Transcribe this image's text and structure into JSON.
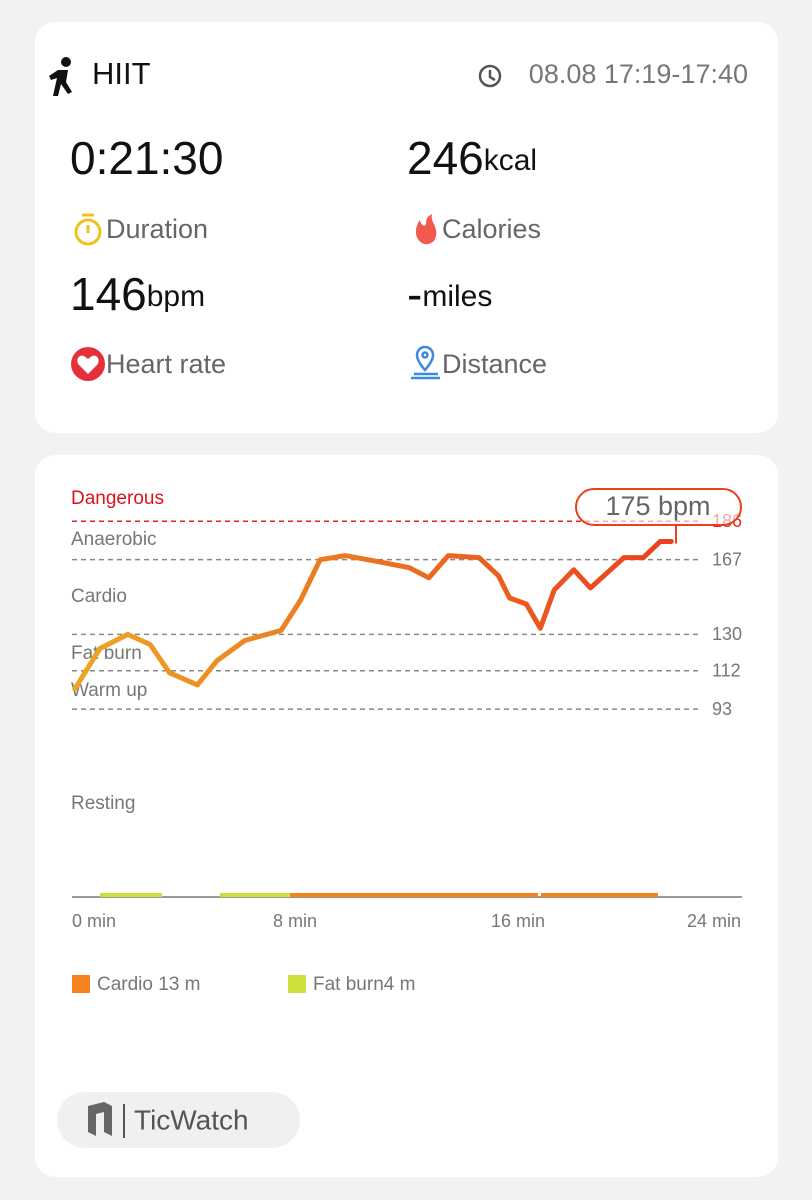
{
  "header": {
    "title": "HIIT",
    "time": "08.08 17:19-17:40"
  },
  "stats": [
    {
      "value": "0:21:30",
      "label": "Duration"
    },
    {
      "value": "246",
      "unit": "kcal",
      "label": "Calories"
    },
    {
      "value": "146",
      "unit": "bpm",
      "label": "Heart rate"
    },
    {
      "value": "-",
      "unit": "miles",
      "label": "Distance"
    }
  ],
  "chart_data": {
    "type": "line",
    "x": [
      0.1,
      1.0,
      2.0,
      2.8,
      3.5,
      4.5,
      5.2,
      6.2,
      7.5,
      8.2,
      8.9,
      9.8,
      11.0,
      12.1,
      12.8,
      13.5,
      14.6,
      15.3,
      15.7,
      16.3,
      16.8,
      17.3,
      18.0,
      18.6,
      19.4,
      19.8,
      20.5,
      21.1,
      21.5
    ],
    "values": [
      103,
      123,
      130,
      125,
      111,
      105,
      117,
      127,
      132,
      147,
      167,
      169,
      166,
      163,
      158,
      169,
      168,
      159,
      148,
      145,
      133,
      152,
      162,
      153,
      163,
      168,
      168,
      176,
      176
    ],
    "gradient": [
      "#eea526",
      "#ea401c"
    ],
    "xlim": [
      0,
      24
    ],
    "xticks": [
      {
        "value": 0,
        "label": "0 min"
      },
      {
        "value": 8,
        "label": "8 min"
      },
      {
        "value": 16,
        "label": "16 min"
      },
      {
        "value": 24,
        "label": "24 min"
      }
    ],
    "ylim": [
      0,
      200
    ],
    "yticks": [
      93,
      112,
      130,
      167,
      186
    ],
    "zones": [
      "Dangerous",
      "Anaerobic",
      "Cardio",
      "Fat burn",
      "Warm up",
      "Resting"
    ],
    "annotation": {
      "value": 175,
      "label": "175 bpm"
    },
    "legend": [
      {
        "label": "Cardio 13 m",
        "color": "#f5821f"
      },
      {
        "label": "Fat burn4 m",
        "color": "#cfe03c"
      }
    ]
  },
  "footer": {
    "brand": "TicWatch"
  }
}
